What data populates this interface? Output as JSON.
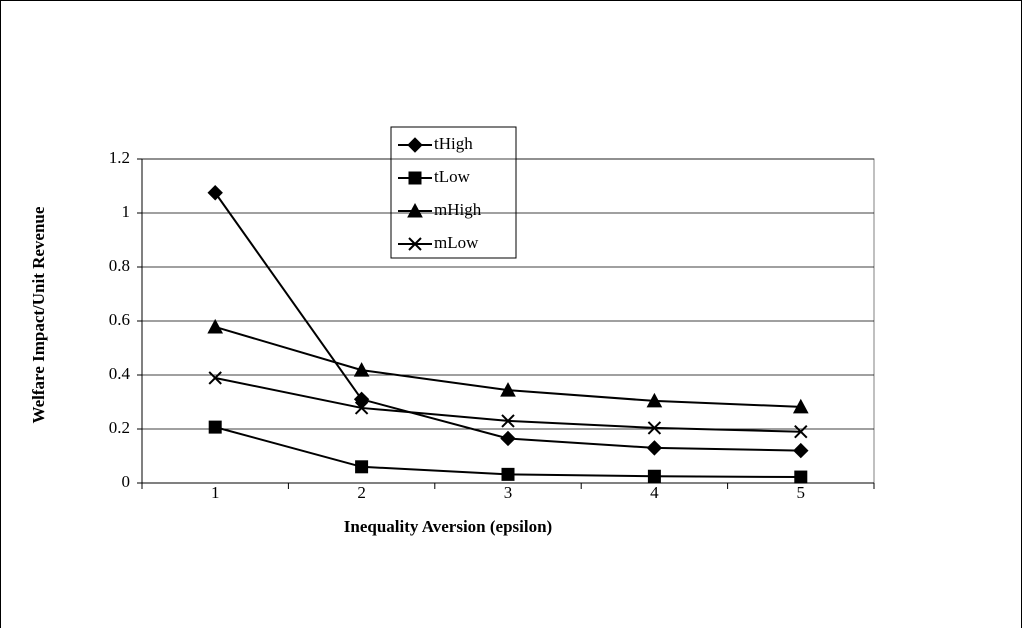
{
  "chart_data": {
    "type": "line",
    "x_label": "Inequality Aversion (epsilon)",
    "y_label": "Welfare Impact/Unit Revenue",
    "categories": [
      "1",
      "2",
      "3",
      "4",
      "5"
    ],
    "ylim": [
      0,
      1.2
    ],
    "yticks": [
      0,
      0.2,
      0.4,
      0.6,
      0.8,
      1,
      1.2
    ],
    "grid": true,
    "series": [
      {
        "name": "tHigh",
        "color": "#000000",
        "marker": "diamond",
        "values": [
          1.075,
          0.31,
          0.165,
          0.13,
          0.12
        ]
      },
      {
        "name": "tLow",
        "color": "#000000",
        "marker": "square",
        "values": [
          0.207,
          0.06,
          0.032,
          0.025,
          0.022
        ]
      },
      {
        "name": "mHigh",
        "color": "#000000",
        "marker": "triangle",
        "values": [
          0.578,
          0.418,
          0.344,
          0.304,
          0.282
        ]
      },
      {
        "name": "mLow",
        "color": "#000000",
        "marker": "x",
        "values": [
          0.389,
          0.278,
          0.23,
          0.204,
          0.19
        ]
      }
    ]
  }
}
